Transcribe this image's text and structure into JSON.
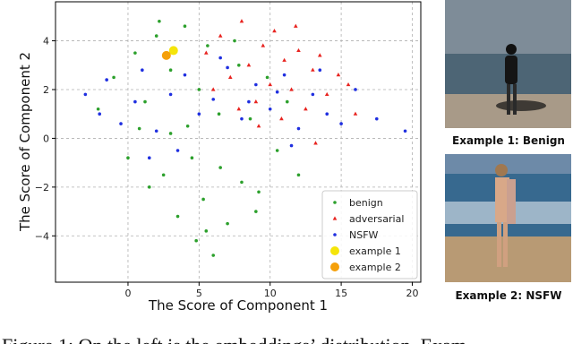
{
  "chart_data": {
    "type": "scatter",
    "xlabel": "The Score of Component 1",
    "ylabel": "The Score of Component 2",
    "xlim": [
      -5.1,
      20.6
    ],
    "ylim": [
      -5.9,
      5.6
    ],
    "xticks": [
      0,
      5,
      10,
      15,
      20
    ],
    "yticks": [
      {
        "value": -4,
        "label": "−4"
      },
      {
        "value": -2,
        "label": "−2"
      },
      0,
      2,
      4
    ],
    "grid": true,
    "legend": "lower right",
    "series": [
      {
        "name": "benign",
        "color": "#2ca02c",
        "marker": "point",
        "x": [
          -2.1,
          -1,
          0,
          0.5,
          1.2,
          2,
          2.5,
          3,
          3.5,
          4,
          4.2,
          4.8,
          5,
          5.3,
          5.6,
          6,
          6.4,
          7,
          7.5,
          8,
          8.6,
          9,
          9.8,
          10.5,
          11.2,
          12,
          1.5,
          3,
          4.5,
          6.5,
          7.8,
          2.2,
          5.5,
          9.2,
          0.8
        ],
        "y": [
          1.2,
          2.5,
          -0.8,
          3.5,
          1.5,
          4.2,
          -1.5,
          2.8,
          -3.2,
          4.6,
          0.5,
          -4.2,
          2,
          -2.5,
          3.8,
          -4.8,
          1,
          -3.5,
          4,
          -1.8,
          0.8,
          -3,
          2.5,
          -0.5,
          1.5,
          -1.5,
          -2,
          0.2,
          -0.8,
          -1.2,
          3,
          4.8,
          -3.8,
          -2.2,
          0.4
        ]
      },
      {
        "name": "adversarial",
        "color": "#e8231f",
        "marker": "triangle",
        "x": [
          5.5,
          6.5,
          7.2,
          8,
          8.5,
          9,
          9.5,
          10,
          10.3,
          10.8,
          11,
          11.5,
          12,
          12.5,
          13,
          13.5,
          14,
          14.8,
          15.5,
          16,
          7.8,
          9.2,
          11.8,
          13.2,
          6
        ],
        "y": [
          3.5,
          4.2,
          2.5,
          4.8,
          3,
          1.5,
          3.8,
          2.2,
          4.4,
          0.8,
          3.2,
          2,
          3.6,
          1.2,
          2.8,
          3.4,
          1.8,
          2.6,
          2.2,
          1,
          1.2,
          0.5,
          4.6,
          -0.2,
          2
        ]
      },
      {
        "name": "NSFW",
        "color": "#1f2fe0",
        "marker": "point",
        "x": [
          -3,
          -2,
          -1.5,
          -0.5,
          0.5,
          1,
          2,
          3,
          4,
          5,
          6,
          7,
          8,
          9,
          10,
          11,
          12,
          13,
          14,
          15,
          16,
          17.5,
          19.5,
          3.5,
          6.5,
          8.5,
          11.5,
          13.5,
          1.5,
          10.5
        ],
        "y": [
          1.8,
          1,
          2.4,
          0.6,
          1.5,
          2.8,
          0.3,
          1.8,
          2.6,
          1,
          1.6,
          2.9,
          0.8,
          2.2,
          1.2,
          2.6,
          0.4,
          1.8,
          1,
          0.6,
          2,
          0.8,
          0.3,
          -0.5,
          3.3,
          1.5,
          -0.3,
          2.8,
          -0.8,
          1.9
        ]
      },
      {
        "name": "example 1",
        "color": "#f5e50a",
        "marker": "circle",
        "x": [
          3.2
        ],
        "y": [
          3.6
        ]
      },
      {
        "name": "example 2",
        "color": "#f5a00a",
        "marker": "circle",
        "x": [
          2.7
        ],
        "y": [
          3.4
        ]
      }
    ]
  },
  "figure": {
    "examples": [
      {
        "caption": "Example 1: Benign"
      },
      {
        "caption": "Example 2: NSFW"
      }
    ],
    "caption": "Figure 1: On the left is the embeddings’ distribution. Exam"
  }
}
